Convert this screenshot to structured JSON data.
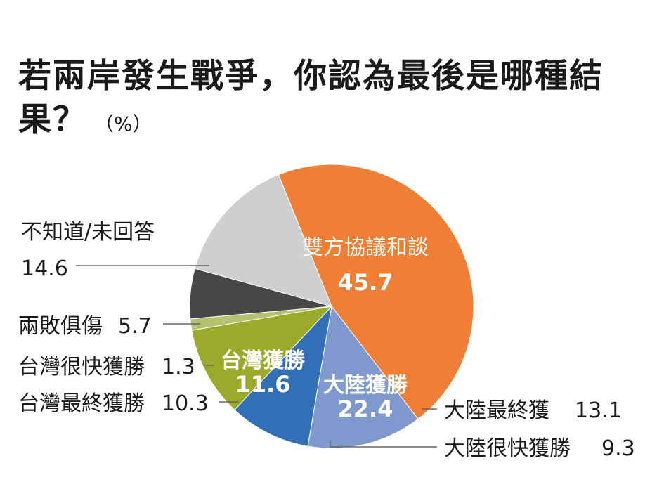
{
  "title": "若兩岸發生戰爭，你認為最後是哪種結果？",
  "unit": "（%）",
  "colors": {
    "orange": "#ef7f35",
    "light_blue": "#7f99cf",
    "blue": "#336fb6",
    "green": "#9aaa2a",
    "light_green": "#b7c270",
    "dark_gray": "#474747",
    "light_gray": "#cfcfcf"
  },
  "chart_data": {
    "type": "pie",
    "title": "若兩岸發生戰爭，你認為最後是哪種結果？",
    "unit": "%",
    "slices": [
      {
        "label": "雙方協議和談",
        "value": 45.7,
        "color": "#ef7f35"
      },
      {
        "label": "大陸最終獲",
        "value": 13.1,
        "color": "#7f99cf"
      },
      {
        "label": "大陸很快獲勝",
        "value": 9.3,
        "color": "#336fb6"
      },
      {
        "label": "台灣最終獲勝",
        "value": 10.3,
        "color": "#9aaa2a"
      },
      {
        "label": "台灣很快獲勝",
        "value": 1.3,
        "color": "#b7c270"
      },
      {
        "label": "兩敗俱傷",
        "value": 5.7,
        "color": "#474747"
      },
      {
        "label": "不知道/未回答",
        "value": 14.6,
        "color": "#cfcfcf"
      }
    ],
    "groups": [
      {
        "label": "大陸獲勝",
        "value": 22.4
      },
      {
        "label": "台灣獲勝",
        "value": 11.6
      }
    ]
  }
}
